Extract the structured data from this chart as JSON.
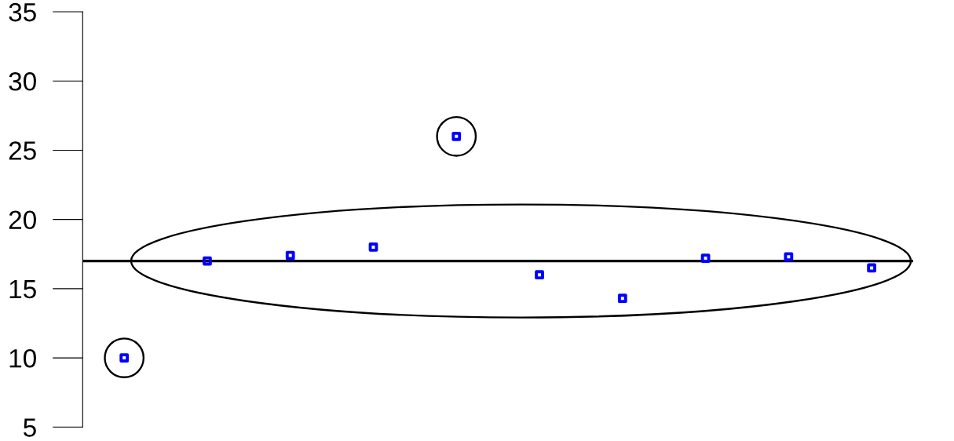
{
  "chart_data": {
    "type": "scatter",
    "categories": [
      null,
      null,
      null,
      null,
      null,
      null,
      null,
      null,
      null,
      null
    ],
    "values": [
      10,
      17,
      17.4,
      18,
      26,
      16,
      14.3,
      17.2,
      17.3,
      16.5
    ],
    "color": "#0000ff",
    "marker": "square",
    "ylim": [
      5,
      35
    ],
    "yticks": [
      5,
      10,
      15,
      20,
      25,
      30,
      35
    ],
    "tick_labels": "y",
    "ref_lines": [
      {
        "axis": "y",
        "value": 17,
        "color": "#000000",
        "line_style": "solid"
      }
    ]
  }
}
